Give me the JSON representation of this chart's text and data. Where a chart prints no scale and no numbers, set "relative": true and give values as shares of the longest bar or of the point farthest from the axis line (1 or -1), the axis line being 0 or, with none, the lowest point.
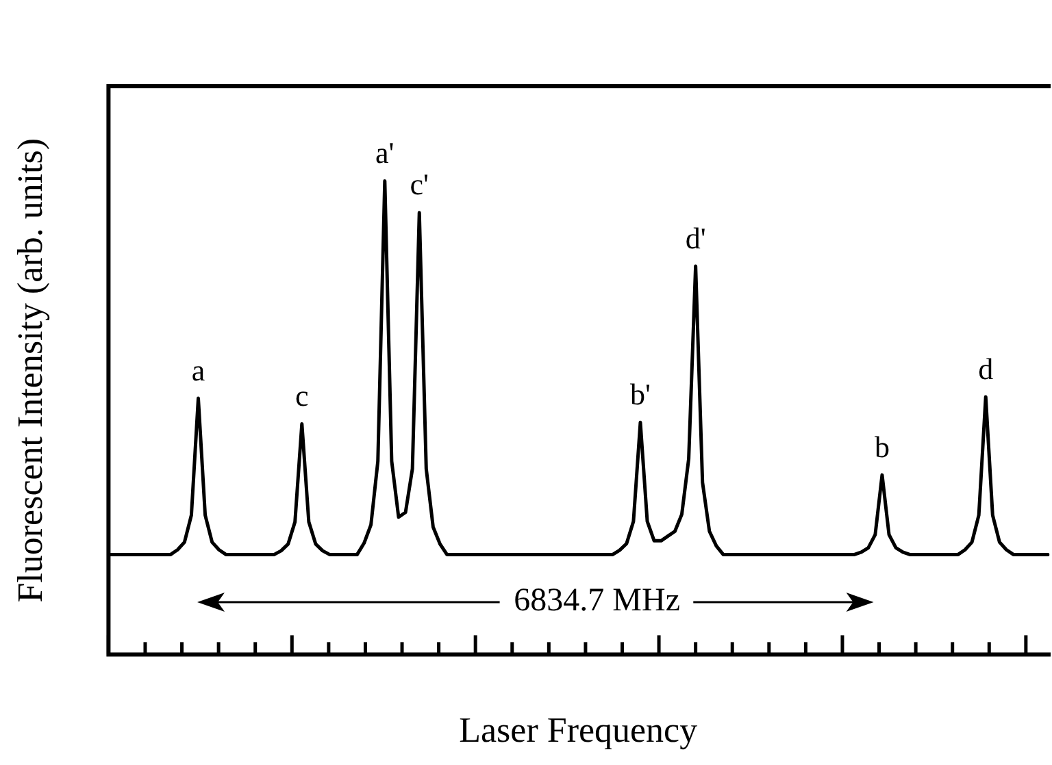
{
  "chart_data": {
    "type": "line",
    "relative": true,
    "xlabel": "Laser Frequency",
    "ylabel": "Fluorescent Intensity (arb. units)",
    "categories": [
      null,
      null,
      null,
      null,
      null,
      null,
      null,
      null,
      null,
      null,
      null,
      null,
      null,
      null,
      null,
      null,
      null,
      null,
      null,
      null,
      null,
      null,
      null,
      null,
      null,
      null,
      null,
      null,
      null,
      null,
      null,
      null,
      null,
      null,
      null,
      null,
      null,
      null,
      null,
      null,
      null,
      null,
      null,
      null,
      null,
      null,
      null,
      null,
      null,
      null,
      null,
      null,
      null,
      null,
      null,
      null,
      null,
      null,
      null,
      null,
      null,
      null,
      null,
      null,
      null,
      null,
      null,
      null,
      null,
      null,
      null,
      null,
      null,
      null,
      null,
      null,
      null,
      null,
      null,
      null,
      null,
      null,
      null,
      null,
      null,
      null,
      null,
      null,
      null,
      null,
      null,
      null,
      null,
      null,
      null,
      null,
      null,
      null,
      null,
      null,
      null,
      null,
      null,
      null,
      null,
      null,
      null,
      null,
      null,
      null,
      null,
      null,
      null,
      null,
      null,
      null,
      null,
      null,
      null,
      null,
      null,
      null,
      null,
      null,
      null,
      null,
      null,
      null,
      null,
      null,
      null,
      null,
      null,
      null,
      null,
      null,
      null
    ],
    "grid": false,
    "legend": false,
    "marker": "none",
    "line_style": "solid",
    "series": [
      {
        "color": "#000000",
        "values": [
          0.211,
          0.211,
          0.211,
          0.211,
          0.211,
          0.211,
          0.211,
          0.211,
          0.211,
          0.211,
          0.221,
          0.237,
          0.294,
          0.541,
          0.294,
          0.237,
          0.221,
          0.211,
          0.211,
          0.211,
          0.211,
          0.211,
          0.211,
          0.211,
          0.211,
          0.219,
          0.233,
          0.28,
          0.487,
          0.28,
          0.233,
          0.219,
          0.211,
          0.211,
          0.211,
          0.211,
          0.211,
          0.235,
          0.274,
          0.408,
          1,
          0.408,
          0.29,
          0.3,
          0.392,
          0.933,
          0.392,
          0.269,
          0.233,
          0.211,
          0.211,
          0.211,
          0.211,
          0.211,
          0.211,
          0.211,
          0.211,
          0.211,
          0.211,
          0.211,
          0.211,
          0.211,
          0.211,
          0.211,
          0.211,
          0.211,
          0.211,
          0.211,
          0.211,
          0.211,
          0.211,
          0.211,
          0.211,
          0.211,
          0.22,
          0.234,
          0.281,
          0.49,
          0.281,
          0.24,
          0.24,
          0.25,
          0.26,
          0.296,
          0.413,
          0.82,
          0.363,
          0.26,
          0.229,
          0.211,
          0.211,
          0.211,
          0.211,
          0.211,
          0.211,
          0.211,
          0.211,
          0.211,
          0.211,
          0.211,
          0.211,
          0.211,
          0.211,
          0.211,
          0.211,
          0.211,
          0.211,
          0.211,
          0.211,
          0.216,
          0.225,
          0.253,
          0.379,
          0.253,
          0.225,
          0.216,
          0.211,
          0.211,
          0.211,
          0.211,
          0.211,
          0.211,
          0.211,
          0.211,
          0.221,
          0.237,
          0.294,
          0.544,
          0.294,
          0.237,
          0.221,
          0.211,
          0.211,
          0.211,
          0.211,
          0.211,
          0.211
        ]
      }
    ],
    "annotations": [
      "a",
      "c",
      "a'",
      "c'",
      "b'",
      "d'",
      "b",
      "d",
      "6834.7 MHz"
    ]
  }
}
